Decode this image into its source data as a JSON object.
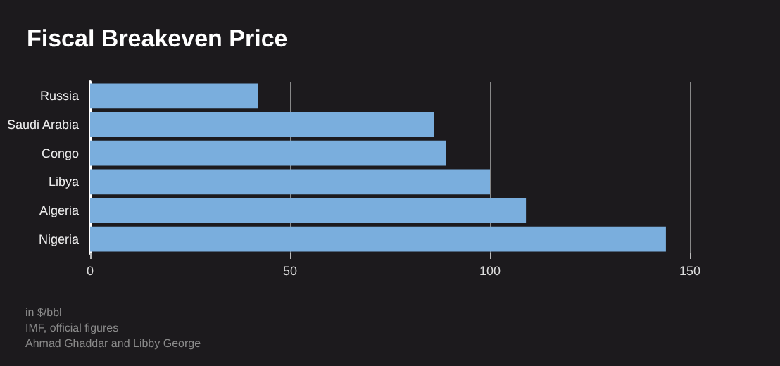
{
  "chart_data": {
    "type": "bar",
    "orientation": "horizontal",
    "title": "Fiscal Breakeven Price",
    "categories": [
      "Russia",
      "Saudi Arabia",
      "Congo",
      "Libya",
      "Algeria",
      "Nigeria"
    ],
    "values": [
      42,
      86,
      89,
      100,
      109,
      144
    ],
    "color": "#7aaedd",
    "xlim": [
      0,
      150
    ],
    "xticks": [
      0,
      50,
      100,
      150
    ],
    "grid": "x",
    "annotations": [
      "in $/bbl",
      "IMF, official figures",
      "Ahmad Ghaddar and Libby George"
    ]
  }
}
